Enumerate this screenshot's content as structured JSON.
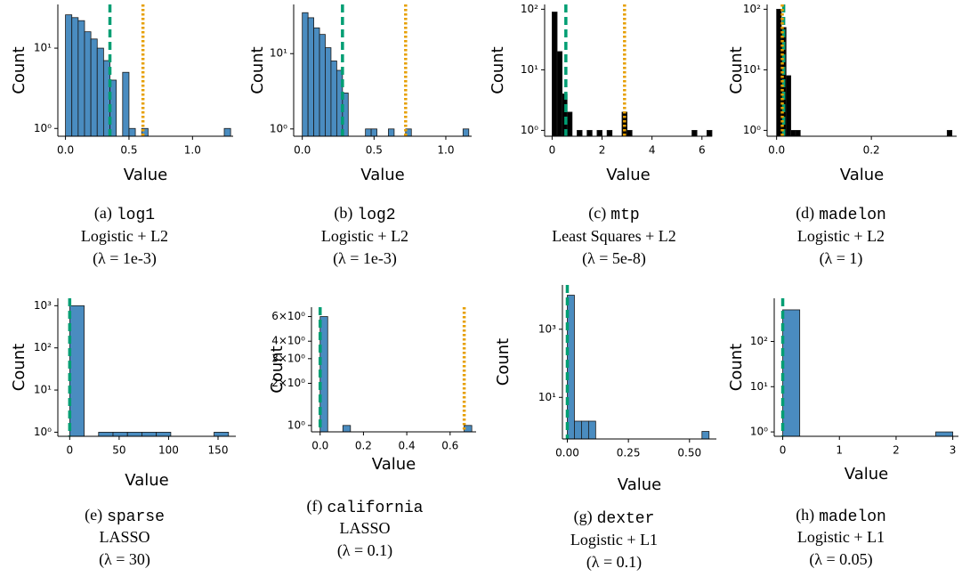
{
  "chart_data": [
    {
      "type": "histogram",
      "x_label": "Value",
      "y_label": "Count",
      "log_y": true,
      "color": "#4a8cc0",
      "bins": [
        0,
        0.05,
        0.1,
        0.15,
        0.2,
        0.25,
        0.3,
        0.35,
        0.4,
        0.45,
        0.5,
        0.55,
        0.6,
        0.65,
        0.7,
        0.75,
        0.8,
        0.85,
        0.9,
        0.95,
        1,
        1.05,
        1.1,
        1.15,
        1.2,
        1.25,
        1.3
      ],
      "counts": [
        26,
        24,
        22,
        16,
        13,
        10,
        7,
        4,
        0,
        5,
        1,
        0,
        1,
        0,
        0,
        0,
        0,
        0,
        0,
        0,
        0,
        0,
        0,
        0,
        0,
        1
      ],
      "vlines": [
        {
          "value": 0.35,
          "color": "#009e73",
          "style": "dashed"
        },
        {
          "value": 0.61,
          "color": "#e69f00",
          "style": "dotted"
        }
      ],
      "xlim": [
        -0.06,
        1.32
      ],
      "ylim": [
        0.8,
        35
      ],
      "xticks": [
        {
          "value": 0,
          "label": "0.0"
        },
        0.5,
        {
          "value": 1,
          "label": "1.0"
        }
      ],
      "yticks": [
        {
          "value": 1,
          "label": "10⁰"
        },
        {
          "value": 10,
          "label": "10¹"
        }
      ],
      "caption": {
        "prefix": "(a)",
        "name": "log1",
        "model": "Logistic + L2",
        "reg": "(λ = 1e-3)"
      }
    },
    {
      "type": "histogram",
      "x_label": "Value",
      "y_label": "Count",
      "log_y": true,
      "color": "#4a8cc0",
      "bins": [
        0,
        0.04,
        0.08,
        0.12,
        0.16,
        0.2,
        0.24,
        0.28,
        0.32,
        0.36,
        0.4,
        0.44,
        0.48,
        0.52,
        0.56,
        0.6,
        0.64,
        0.68,
        0.72,
        0.76,
        0.8,
        0.84,
        0.88,
        0.92,
        0.96,
        1,
        1.04,
        1.08,
        1.12,
        1.16
      ],
      "counts": [
        35,
        30,
        22,
        18,
        12,
        8,
        6,
        3,
        0,
        0,
        0,
        1,
        1,
        0,
        0,
        1,
        0,
        0,
        1,
        0,
        0,
        0,
        0,
        0,
        0,
        0,
        0,
        0,
        1
      ],
      "vlines": [
        {
          "value": 0.28,
          "color": "#009e73",
          "style": "dashed"
        },
        {
          "value": 0.72,
          "color": "#e69f00",
          "style": "dotted"
        }
      ],
      "xlim": [
        -0.06,
        1.18
      ],
      "ylim": [
        0.8,
        45
      ],
      "xticks": [
        {
          "value": 0,
          "label": "0.0"
        },
        0.5,
        {
          "value": 1,
          "label": "1.0"
        }
      ],
      "yticks": [
        {
          "value": 1,
          "label": "10⁰"
        },
        {
          "value": 10,
          "label": "10¹"
        }
      ],
      "caption": {
        "prefix": "(b)",
        "name": "log2",
        "model": "Logistic + L2",
        "reg": "(λ = 1e-3)"
      }
    },
    {
      "type": "histogram",
      "x_label": "Value",
      "y_label": "Count",
      "log_y": true,
      "color": "#000000",
      "bins": [
        0,
        0.2,
        0.4,
        0.6,
        0.8,
        1,
        1.2,
        1.4,
        1.6,
        1.8,
        2,
        2.2,
        2.4,
        2.6,
        2.8,
        3,
        3.2,
        3.4,
        3.6,
        3.8,
        4,
        4.2,
        4.4,
        4.6,
        4.8,
        5,
        5.2,
        5.4,
        5.6,
        5.8,
        6,
        6.2,
        6.4
      ],
      "counts": [
        90,
        20,
        4,
        2,
        0,
        1,
        0,
        1,
        0,
        1,
        0,
        1,
        0,
        0,
        2,
        1,
        0,
        0,
        0,
        0,
        0,
        0,
        0,
        0,
        0,
        0,
        0,
        0,
        1,
        0,
        0,
        1
      ],
      "vlines": [
        {
          "value": 0.55,
          "color": "#009e73",
          "style": "dashed"
        },
        {
          "value": 2.9,
          "color": "#e69f00",
          "style": "dotted"
        }
      ],
      "xlim": [
        -0.3,
        6.4
      ],
      "ylim": [
        0.8,
        120
      ],
      "xticks": [
        0,
        2,
        4,
        6
      ],
      "yticks": [
        {
          "value": 1,
          "label": "10⁰"
        },
        {
          "value": 10,
          "label": "10¹"
        },
        {
          "value": 100,
          "label": "10²"
        }
      ],
      "caption": {
        "prefix": "(c)",
        "name": "mtp",
        "model": "Least Squares + L2",
        "reg": "(λ = 5e-8)"
      }
    },
    {
      "type": "histogram",
      "x_label": "Value",
      "y_label": "Count",
      "log_y": true,
      "color": "#000000",
      "bins": [
        0,
        0.01,
        0.02,
        0.03,
        0.04,
        0.05,
        0.06,
        0.07,
        0.08,
        0.09,
        0.1,
        0.11,
        0.12,
        0.13,
        0.14,
        0.15,
        0.16,
        0.17,
        0.18,
        0.19,
        0.2,
        0.21,
        0.22,
        0.23,
        0.24,
        0.25,
        0.26,
        0.27,
        0.28,
        0.29,
        0.3,
        0.31,
        0.32,
        0.33,
        0.34,
        0.35,
        0.36,
        0.37
      ],
      "counts": [
        100,
        50,
        8,
        1,
        1,
        0,
        0,
        0,
        0,
        0,
        0,
        0,
        0,
        0,
        0,
        0,
        0,
        0,
        0,
        0,
        0,
        0,
        0,
        0,
        0,
        0,
        0,
        0,
        0,
        0,
        0,
        0,
        0,
        0,
        0,
        0,
        1
      ],
      "vlines": [
        {
          "value": 0.015,
          "color": "#009e73",
          "style": "dashed"
        },
        {
          "value": 0.012,
          "color": "#e69f00",
          "style": "dotted"
        }
      ],
      "xlim": [
        -0.02,
        0.38
      ],
      "ylim": [
        0.8,
        120
      ],
      "xticks": [
        {
          "value": 0,
          "label": "0.0"
        },
        0.2
      ],
      "yticks": [
        {
          "value": 1,
          "label": "10⁰"
        },
        {
          "value": 10,
          "label": "10¹"
        },
        {
          "value": 100,
          "label": "10²"
        }
      ],
      "caption": {
        "prefix": "(d)",
        "name": "madelon",
        "model": "Logistic + L2",
        "reg": "(λ = 1)"
      }
    },
    {
      "type": "histogram",
      "x_label": "Value",
      "y_label": "Count",
      "log_y": true,
      "color": "#4a8cc0",
      "bins": [
        0,
        14.6,
        29.2,
        43.8,
        58.4,
        73,
        87.6,
        102.2,
        116.8,
        131.4,
        146,
        160.6
      ],
      "counts": [
        1000,
        0,
        1,
        1,
        1,
        1,
        1,
        0,
        0,
        0,
        1
      ],
      "vlines": [
        {
          "value": 0,
          "color": "#009e73",
          "style": "dashed"
        }
      ],
      "xlim": [
        -12,
        168
      ],
      "ylim": [
        0.8,
        1500
      ],
      "xticks": [
        0,
        50,
        100,
        150
      ],
      "yticks": [
        {
          "value": 1,
          "label": "10⁰"
        },
        {
          "value": 10,
          "label": "10¹"
        },
        {
          "value": 100,
          "label": "10²"
        },
        {
          "value": 1000,
          "label": "10³"
        }
      ],
      "caption": {
        "prefix": "(e)",
        "name": "sparse",
        "model": "LASSO",
        "reg": "(λ = 30)"
      }
    },
    {
      "type": "histogram",
      "x_label": "Value",
      "y_label": "Count",
      "log_y": true,
      "color": "#4a8cc0",
      "bins": [
        0,
        0.035,
        0.07,
        0.105,
        0.14,
        0.175,
        0.21,
        0.245,
        0.28,
        0.315,
        0.35,
        0.385,
        0.42,
        0.455,
        0.49,
        0.525,
        0.56,
        0.595,
        0.63,
        0.665,
        0.7
      ],
      "counts": [
        6,
        0,
        0,
        1,
        0,
        0,
        0,
        0,
        0,
        0,
        0,
        0,
        0,
        0,
        0,
        0,
        0,
        0,
        0,
        1
      ],
      "vlines": [
        {
          "value": 0,
          "color": "#009e73",
          "style": "dashed"
        },
        {
          "value": 0.665,
          "color": "#e69f00",
          "style": "dotted"
        }
      ],
      "xlim": [
        -0.04,
        0.72
      ],
      "ylim": [
        0.9,
        7
      ],
      "xticks": [
        {
          "value": 0,
          "label": "0.0"
        },
        0.2,
        0.4,
        0.6
      ],
      "yticks": [
        {
          "value": 1,
          "label": "10⁰"
        },
        {
          "value": 2,
          "label": "2×10⁰"
        },
        {
          "value": 3,
          "label": "3×10⁰"
        },
        {
          "value": 4,
          "label": "4×10⁰"
        },
        {
          "value": 6,
          "label": "6×10⁰"
        }
      ],
      "caption": {
        "prefix": "(f)",
        "name": "california",
        "model": "LASSO",
        "reg": "(λ = 0.1)"
      }
    },
    {
      "type": "histogram",
      "x_label": "Value",
      "y_label": "Count",
      "log_y": true,
      "color": "#4a8cc0",
      "bins": [
        0,
        0.029,
        0.058,
        0.087,
        0.116,
        0.145,
        0.174,
        0.203,
        0.232,
        0.261,
        0.29,
        0.319,
        0.348,
        0.377,
        0.406,
        0.435,
        0.464,
        0.493,
        0.522,
        0.551,
        0.58
      ],
      "counts": [
        10000,
        2,
        2,
        2,
        0,
        0,
        0,
        0,
        0,
        0,
        0,
        0,
        0,
        0,
        0,
        0,
        0,
        0,
        0,
        1
      ],
      "vlines": [
        {
          "value": 0,
          "color": "#009e73",
          "style": "dashed"
        }
      ],
      "xlim": [
        -0.02,
        0.61
      ],
      "ylim": [
        0.6,
        20000
      ],
      "xticks": [
        {
          "value": 0,
          "label": "0.00"
        },
        0.25,
        {
          "value": 0.5,
          "label": "0.50"
        }
      ],
      "yticks": [
        {
          "value": 10,
          "label": "10¹"
        },
        {
          "value": 1000,
          "label": "10³"
        }
      ],
      "caption": {
        "prefix": "(g)",
        "name": "dexter",
        "model": "Logistic + L1",
        "reg": "(λ = 0.1)"
      }
    },
    {
      "type": "histogram",
      "x_label": "Value",
      "y_label": "Count",
      "log_y": true,
      "color": "#4a8cc0",
      "bins": [
        0,
        0.3,
        0.6,
        0.9,
        1.2,
        1.5,
        1.8,
        2.1,
        2.4,
        2.7,
        3
      ],
      "counts": [
        500,
        0,
        0,
        0,
        0,
        0,
        0,
        0,
        0,
        1
      ],
      "vlines": [
        {
          "value": 0,
          "color": "#009e73",
          "style": "dashed"
        }
      ],
      "xlim": [
        -0.15,
        3.1
      ],
      "ylim": [
        0.8,
        900
      ],
      "xticks": [
        0,
        1,
        2,
        3
      ],
      "yticks": [
        {
          "value": 1,
          "label": "10⁰"
        },
        {
          "value": 10,
          "label": "10¹"
        },
        {
          "value": 100,
          "label": "10²"
        }
      ],
      "caption": {
        "prefix": "(h)",
        "name": "madelon",
        "model": "Logistic + L1",
        "reg": "(λ = 0.05)"
      }
    }
  ]
}
